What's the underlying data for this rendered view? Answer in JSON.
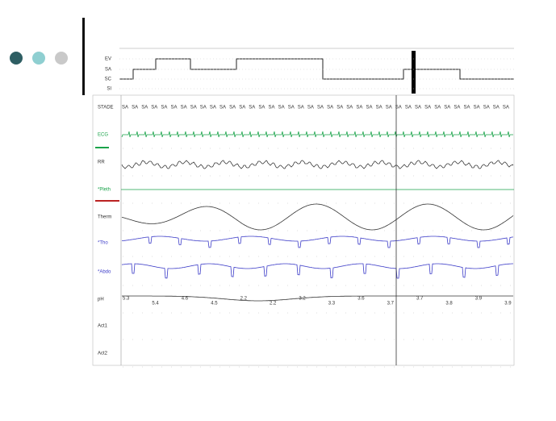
{
  "hypnogram": {
    "levels": [
      "EV",
      "SA",
      "SC",
      "SI"
    ]
  },
  "channels": [
    "STADE",
    "ECG",
    "RR",
    "*Pleth",
    "Therm",
    "*Tho",
    "*Abdo",
    "pH",
    "Act1",
    "Act2"
  ],
  "stade": [
    "SA",
    "SA",
    "SA",
    "SA",
    "SA",
    "SA",
    "SA",
    "SA",
    "SA",
    "SA",
    "SA",
    "SA",
    "SA",
    "SA",
    "SA",
    "SA",
    "SA",
    "SA",
    "SA",
    "SA",
    "SA",
    "SA",
    "SA",
    "SA",
    "SA",
    "SA",
    "SA",
    "SA",
    "SA",
    "SA",
    "SA",
    "SA",
    "SA",
    "SA",
    "SA",
    "SA",
    "SA",
    "SA",
    "SA",
    "SA"
  ],
  "ph": [
    "5.3",
    "5.4",
    "4.6",
    "4.5",
    "2.2",
    "2.2",
    "3.2",
    "3.3",
    "3.6",
    "3.7",
    "3.7",
    "3.8",
    "3.9",
    "3.9"
  ]
}
